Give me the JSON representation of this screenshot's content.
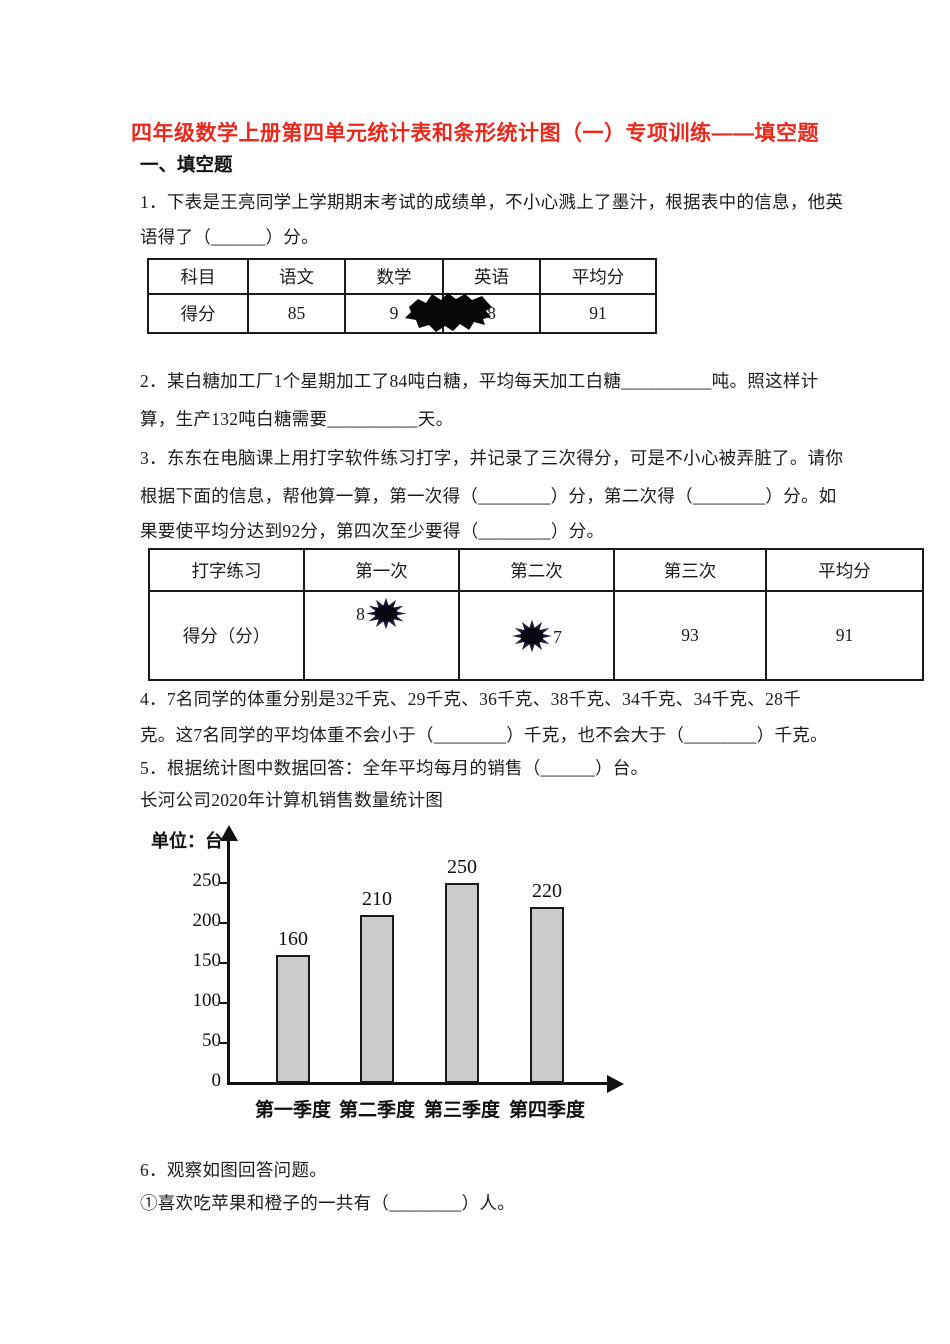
{
  "page_title": "四年级数学上册第四单元统计表和条形统计图（一）专项训练——填空题",
  "section_heading": "一、填空题",
  "colors": {
    "title_red": "#e8291c",
    "bar_fill": "#cbcbcb",
    "ink_blot_black": "#060608",
    "star_blot_navy": "#1c1c40"
  },
  "q1": {
    "lines": [
      "1．下表是王亮同学上学期期末考试的成绩单，不小心溅上了墨汁，根据表中的信息，他英",
      "语得了（______）分。"
    ]
  },
  "table1": {
    "headers": [
      "科目",
      "语文",
      "数学",
      "英语",
      "平均分"
    ],
    "row_label": "得分",
    "values": {
      "chinese": "85",
      "math_visible": "9",
      "english_visible": "8",
      "average": "91"
    }
  },
  "q2": {
    "lines": [
      "2．某白糖加工厂1个星期加工了84吨白糖，平均每天加工白糖__________吨。照这样计",
      "算，生产132吨白糖需要__________天。"
    ]
  },
  "q3": {
    "lines": [
      "3．东东在电脑课上用打字软件练习打字，并记录了三次得分，可是不小心被弄脏了。请你",
      "根据下面的信息，帮他算一算，第一次得（________）分，第二次得（________）分。如",
      "果要使平均分达到92分，第四次至少要得（________）分。"
    ]
  },
  "table2": {
    "headers": [
      "打字练习",
      "第一次",
      "第二次",
      "第三次",
      "平均分"
    ],
    "row_label": "得分（分）",
    "values": {
      "first_visible": "8",
      "second_visible": "7",
      "third": "93",
      "average": "91"
    }
  },
  "q4": {
    "lines": [
      "4．7名同学的体重分别是32千克、29千克、36千克、38千克、34千克、34千克、28千",
      "克。这7名同学的平均体重不会小于（________）千克，也不会大于（________）千克。"
    ]
  },
  "q5": {
    "lines": [
      "5．根据统计图中数据回答：全年平均每月的销售（______）台。"
    ]
  },
  "chart_data": {
    "type": "bar",
    "title": "长河公司2020年计算机销售数量统计图",
    "unit_label": "单位：台",
    "categories": [
      "第一季度",
      "第二季度",
      "第三季度",
      "第四季度"
    ],
    "values": [
      160,
      210,
      250,
      220
    ],
    "y_ticks": [
      0,
      50,
      100,
      150,
      200,
      250
    ],
    "ylim": [
      0,
      280
    ],
    "xlabel": "",
    "ylabel": "台",
    "grid": false,
    "legend": "none",
    "data_labels": true,
    "bar_color": "#cbcbcb"
  },
  "q6": {
    "lines": [
      "6．观察如图回答问题。",
      "①喜欢吃苹果和橙子的一共有（________）人。"
    ]
  }
}
